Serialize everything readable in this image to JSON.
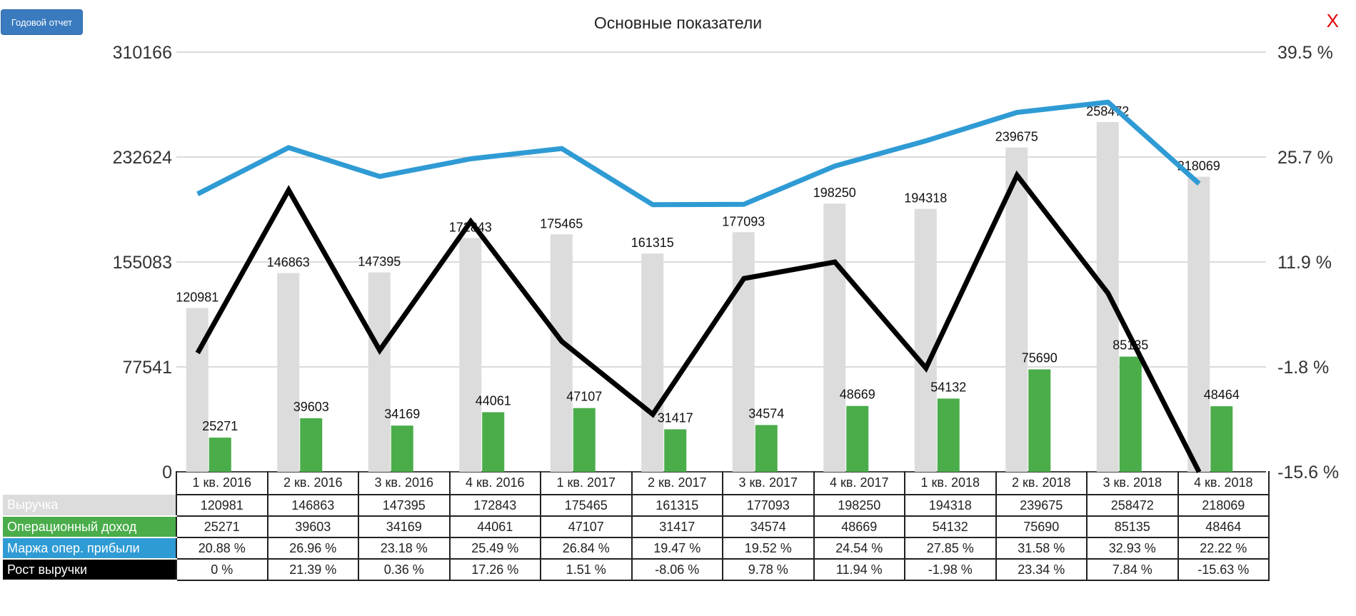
{
  "toolbar": {
    "report_button": "Годовой отчет",
    "close_label": "X"
  },
  "colors": {
    "revenue": "#dcdcdc",
    "op_income": "#4aad4a",
    "margin": "#2f9bd4",
    "growth": "#000000",
    "report_button": "#3a7bbf",
    "close": "#e00000"
  },
  "chart_data": {
    "type": "bar",
    "title": "Основные показатели",
    "categories": [
      "1 кв. 2016",
      "2 кв. 2016",
      "3 кв. 2016",
      "4 кв. 2016",
      "1 кв. 2017",
      "2 кв. 2017",
      "3 кв. 2017",
      "4 кв. 2017",
      "1 кв. 2018",
      "2 кв. 2018",
      "3 кв. 2018",
      "4 кв. 2018"
    ],
    "left_axis": {
      "ticks": [
        "310166",
        "232624",
        "155083",
        "77541",
        "0"
      ],
      "ylim": [
        0,
        310166
      ]
    },
    "right_axis": {
      "ticks": [
        "39.5 %",
        "25.7 %",
        "11.9 %",
        "-1.8 %",
        "-15.6 %"
      ],
      "ylim": [
        -15.6,
        39.5
      ]
    },
    "grid": true,
    "legend": "table-below",
    "series": [
      {
        "key": "revenue",
        "name": "Выручка",
        "type": "bar",
        "axis": "left",
        "values": [
          120981,
          146863,
          147395,
          172843,
          175465,
          161315,
          177093,
          198250,
          194318,
          239675,
          258472,
          218069
        ],
        "labels": [
          "120981",
          "146863",
          "147395",
          "172843",
          "175465",
          "161315",
          "177093",
          "198250",
          "194318",
          "239675",
          "258472",
          "218069"
        ]
      },
      {
        "key": "op_income",
        "name": "Операционный доход",
        "type": "bar",
        "axis": "left",
        "values": [
          25271,
          39603,
          34169,
          44061,
          47107,
          31417,
          34574,
          48669,
          54132,
          75690,
          85135,
          48464
        ],
        "labels": [
          "25271",
          "39603",
          "34169",
          "44061",
          "47107",
          "31417",
          "34574",
          "48669",
          "54132",
          "75690",
          "85135",
          "48464"
        ]
      },
      {
        "key": "margin",
        "name": "Маржа опер. прибыли",
        "type": "line",
        "axis": "right",
        "values": [
          20.88,
          26.96,
          23.18,
          25.49,
          26.84,
          19.47,
          19.52,
          24.54,
          27.85,
          31.58,
          32.93,
          22.22
        ],
        "labels": [
          "20.88 %",
          "26.96 %",
          "23.18 %",
          "25.49 %",
          "26.84 %",
          "19.47 %",
          "19.52 %",
          "24.54 %",
          "27.85 %",
          "31.58 %",
          "32.93 %",
          "22.22 %"
        ]
      },
      {
        "key": "growth",
        "name": "Рост выручки",
        "type": "line",
        "axis": "right",
        "values": [
          0,
          21.39,
          0.36,
          17.26,
          1.51,
          -8.06,
          9.78,
          11.94,
          -1.98,
          23.34,
          7.84,
          -15.63
        ],
        "labels": [
          "0 %",
          "21.39 %",
          "0.36 %",
          "17.26 %",
          "1.51 %",
          "-8.06 %",
          "9.78 %",
          "11.94 %",
          "-1.98 %",
          "23.34 %",
          "7.84 %",
          "-15.63 %"
        ]
      }
    ]
  }
}
